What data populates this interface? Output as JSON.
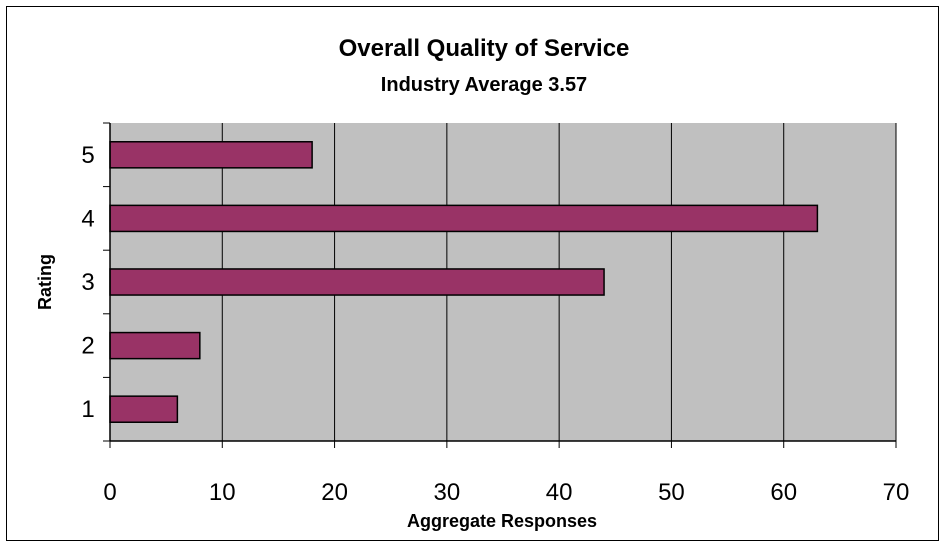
{
  "chart_data": {
    "type": "bar",
    "orientation": "horizontal",
    "title": "Overall Quality of Service",
    "subtitle": "Industry Average 3.57",
    "xlabel": "Aggregate Responses",
    "ylabel": "Rating",
    "categories": [
      "1",
      "2",
      "3",
      "4",
      "5"
    ],
    "values": [
      6,
      8,
      44,
      63,
      18
    ],
    "xlim": [
      0,
      70
    ],
    "xticks": [
      0,
      10,
      20,
      30,
      40,
      50,
      60,
      70
    ],
    "grid": true,
    "legend": "none",
    "colors": {
      "bar": "#993366",
      "plot_background": "#c0c0c0",
      "gridline": "#000000"
    }
  }
}
